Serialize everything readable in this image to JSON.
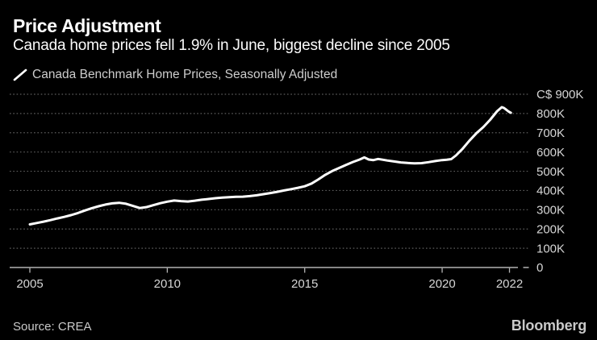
{
  "header": {
    "title": "Price Adjustment",
    "subtitle": "Canada home prices fell 1.9% in June, biggest decline since 2005"
  },
  "legend": {
    "series_label": "Canada Benchmark Home Prices, Seasonally Adjusted"
  },
  "footer": {
    "source": "Source: CREA",
    "brand": "Bloomberg"
  },
  "colors": {
    "background": "#000000",
    "title_text": "#ffffff",
    "subtitle_text": "#fbfbfb",
    "legend_text": "#cdcdcd",
    "line": "#ffffff",
    "grid": "#5e5e5e",
    "axis": "#b3b3b3",
    "axis_label": "#d6d6d6",
    "muted_text": "#c9c9c9"
  },
  "chart_data": {
    "type": "line",
    "title": "Price Adjustment",
    "subtitle": "Canada home prices fell 1.9% in June, biggest decline since 2005",
    "unit": "C$ thousands",
    "grid": "dotted-horizontal",
    "legend_position": "top-left",
    "ylim": [
      0,
      900
    ],
    "xlim": [
      2004.3,
      2023.1
    ],
    "y_ticks": [
      {
        "value": 900,
        "label": "C$ 900K"
      },
      {
        "value": 800,
        "label": "800K"
      },
      {
        "value": 700,
        "label": "700K"
      },
      {
        "value": 600,
        "label": "600K"
      },
      {
        "value": 500,
        "label": "500K"
      },
      {
        "value": 400,
        "label": "400K"
      },
      {
        "value": 300,
        "label": "300K"
      },
      {
        "value": 200,
        "label": "200K"
      },
      {
        "value": 100,
        "label": "100K"
      },
      {
        "value": 0,
        "label": "0"
      }
    ],
    "x_ticks": [
      {
        "label": "2005",
        "pos": 2005
      },
      {
        "label": "2010",
        "pos": 2010
      },
      {
        "label": "2015",
        "pos": 2015
      },
      {
        "label": "2020",
        "pos": 2020
      },
      {
        "label": "2022",
        "pos": 2022.45
      }
    ],
    "series": [
      {
        "name": "Canada Benchmark Home Prices, Seasonally Adjusted",
        "x": [
          2005.0,
          2005.25,
          2005.5,
          2005.75,
          2006.0,
          2006.25,
          2006.5,
          2006.75,
          2007.0,
          2007.25,
          2007.5,
          2007.75,
          2008.0,
          2008.25,
          2008.5,
          2008.75,
          2009.0,
          2009.25,
          2009.5,
          2009.75,
          2010.0,
          2010.25,
          2010.5,
          2010.75,
          2011.0,
          2011.25,
          2011.5,
          2011.75,
          2012.0,
          2012.25,
          2012.5,
          2012.75,
          2013.0,
          2013.25,
          2013.5,
          2013.75,
          2014.0,
          2014.25,
          2014.5,
          2014.75,
          2015.0,
          2015.25,
          2015.5,
          2015.75,
          2016.0,
          2016.25,
          2016.5,
          2016.75,
          2017.0,
          2017.17,
          2017.33,
          2017.5,
          2017.67,
          2017.83,
          2018.0,
          2018.25,
          2018.5,
          2018.75,
          2019.0,
          2019.25,
          2019.5,
          2019.75,
          2020.0,
          2020.17,
          2020.33,
          2020.5,
          2020.75,
          2021.0,
          2021.25,
          2021.5,
          2021.75,
          2022.0,
          2022.17,
          2022.25,
          2022.33,
          2022.42,
          2022.5
        ],
        "values": [
          224,
          231,
          238,
          246,
          255,
          263,
          272,
          283,
          296,
          308,
          318,
          327,
          333,
          336,
          331,
          320,
          309,
          314,
          324,
          334,
          342,
          348,
          345,
          343,
          347,
          352,
          356,
          360,
          363,
          365,
          367,
          368,
          371,
          375,
          381,
          387,
          393,
          400,
          407,
          414,
          422,
          436,
          458,
          482,
          501,
          517,
          533,
          548,
          561,
          572,
          561,
          558,
          564,
          560,
          556,
          551,
          546,
          543,
          541,
          542,
          547,
          553,
          558,
          560,
          563,
          582,
          618,
          660,
          698,
          730,
          768,
          812,
          833,
          829,
          820,
          810,
          804
        ]
      }
    ]
  }
}
